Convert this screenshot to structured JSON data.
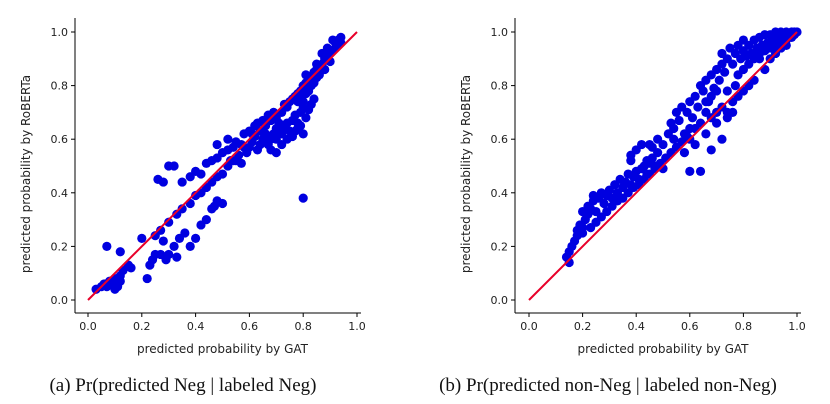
{
  "chart_data": [
    {
      "type": "scatter",
      "caption": "(a) Pr(predicted Neg | labeled Neg)",
      "xlabel": "predicted probability by GAT",
      "ylabel": "predicted probability by RoBERTa",
      "xlim": [
        0.0,
        1.0
      ],
      "ylim": [
        0.0,
        1.0
      ],
      "xticks": [
        "0.0",
        "0.2",
        "0.4",
        "0.6",
        "0.8",
        "1.0"
      ],
      "yticks": [
        "0.0",
        "0.2",
        "0.4",
        "0.6",
        "0.8",
        "1.0"
      ],
      "point_color": "#0000e0",
      "reference_line": {
        "from": [
          0.0,
          0.0
        ],
        "to": [
          1.0,
          1.0
        ],
        "color": "#e8002a"
      },
      "points": [
        [
          0.03,
          0.04
        ],
        [
          0.05,
          0.05
        ],
        [
          0.06,
          0.06
        ],
        [
          0.07,
          0.05
        ],
        [
          0.08,
          0.07
        ],
        [
          0.09,
          0.06
        ],
        [
          0.1,
          0.08
        ],
        [
          0.11,
          0.05
        ],
        [
          0.12,
          0.07
        ],
        [
          0.12,
          0.09
        ],
        [
          0.13,
          0.11
        ],
        [
          0.15,
          0.13
        ],
        [
          0.07,
          0.2
        ],
        [
          0.12,
          0.18
        ],
        [
          0.1,
          0.04
        ],
        [
          0.16,
          0.12
        ],
        [
          0.22,
          0.08
        ],
        [
          0.23,
          0.13
        ],
        [
          0.24,
          0.15
        ],
        [
          0.25,
          0.17
        ],
        [
          0.27,
          0.17
        ],
        [
          0.28,
          0.22
        ],
        [
          0.29,
          0.15
        ],
        [
          0.3,
          0.17
        ],
        [
          0.32,
          0.2
        ],
        [
          0.34,
          0.23
        ],
        [
          0.36,
          0.25
        ],
        [
          0.33,
          0.16
        ],
        [
          0.38,
          0.2
        ],
        [
          0.4,
          0.23
        ],
        [
          0.42,
          0.28
        ],
        [
          0.44,
          0.3
        ],
        [
          0.46,
          0.34
        ],
        [
          0.47,
          0.35
        ],
        [
          0.48,
          0.37
        ],
        [
          0.5,
          0.36
        ],
        [
          0.2,
          0.23
        ],
        [
          0.25,
          0.24
        ],
        [
          0.27,
          0.26
        ],
        [
          0.3,
          0.29
        ],
        [
          0.33,
          0.32
        ],
        [
          0.35,
          0.34
        ],
        [
          0.38,
          0.36
        ],
        [
          0.4,
          0.39
        ],
        [
          0.42,
          0.4
        ],
        [
          0.44,
          0.42
        ],
        [
          0.46,
          0.44
        ],
        [
          0.48,
          0.46
        ],
        [
          0.5,
          0.47
        ],
        [
          0.52,
          0.5
        ],
        [
          0.54,
          0.52
        ],
        [
          0.56,
          0.54
        ],
        [
          0.58,
          0.57
        ],
        [
          0.26,
          0.45
        ],
        [
          0.28,
          0.44
        ],
        [
          0.3,
          0.5
        ],
        [
          0.32,
          0.5
        ],
        [
          0.35,
          0.44
        ],
        [
          0.38,
          0.46
        ],
        [
          0.4,
          0.48
        ],
        [
          0.42,
          0.47
        ],
        [
          0.44,
          0.51
        ],
        [
          0.46,
          0.52
        ],
        [
          0.48,
          0.53
        ],
        [
          0.5,
          0.55
        ],
        [
          0.52,
          0.56
        ],
        [
          0.54,
          0.57
        ],
        [
          0.55,
          0.59
        ],
        [
          0.58,
          0.62
        ],
        [
          0.6,
          0.63
        ],
        [
          0.62,
          0.65
        ],
        [
          0.65,
          0.67
        ],
        [
          0.67,
          0.69
        ],
        [
          0.48,
          0.58
        ],
        [
          0.52,
          0.6
        ],
        [
          0.55,
          0.52
        ],
        [
          0.57,
          0.51
        ],
        [
          0.59,
          0.55
        ],
        [
          0.6,
          0.57
        ],
        [
          0.61,
          0.59
        ],
        [
          0.63,
          0.56
        ],
        [
          0.64,
          0.58
        ],
        [
          0.65,
          0.6
        ],
        [
          0.66,
          0.62
        ],
        [
          0.67,
          0.58
        ],
        [
          0.68,
          0.6
        ],
        [
          0.69,
          0.62
        ],
        [
          0.7,
          0.6
        ],
        [
          0.7,
          0.64
        ],
        [
          0.71,
          0.66
        ],
        [
          0.72,
          0.62
        ],
        [
          0.73,
          0.64
        ],
        [
          0.74,
          0.66
        ],
        [
          0.75,
          0.63
        ],
        [
          0.76,
          0.67
        ],
        [
          0.77,
          0.69
        ],
        [
          0.78,
          0.66
        ],
        [
          0.79,
          0.7
        ],
        [
          0.8,
          0.72
        ],
        [
          0.81,
          0.68
        ],
        [
          0.82,
          0.71
        ],
        [
          0.83,
          0.73
        ],
        [
          0.84,
          0.75
        ],
        [
          0.62,
          0.61
        ],
        [
          0.64,
          0.63
        ],
        [
          0.66,
          0.65
        ],
        [
          0.68,
          0.67
        ],
        [
          0.7,
          0.68
        ],
        [
          0.72,
          0.7
        ],
        [
          0.74,
          0.72
        ],
        [
          0.75,
          0.74
        ],
        [
          0.76,
          0.75
        ],
        [
          0.77,
          0.76
        ],
        [
          0.78,
          0.77
        ],
        [
          0.79,
          0.78
        ],
        [
          0.8,
          0.8
        ],
        [
          0.81,
          0.81
        ],
        [
          0.82,
          0.82
        ],
        [
          0.83,
          0.83
        ],
        [
          0.84,
          0.85
        ],
        [
          0.85,
          0.86
        ],
        [
          0.78,
          0.74
        ],
        [
          0.79,
          0.76
        ],
        [
          0.8,
          0.74
        ],
        [
          0.81,
          0.77
        ],
        [
          0.82,
          0.78
        ],
        [
          0.83,
          0.8
        ],
        [
          0.84,
          0.81
        ],
        [
          0.85,
          0.83
        ],
        [
          0.86,
          0.84
        ],
        [
          0.86,
          0.87
        ],
        [
          0.87,
          0.88
        ],
        [
          0.88,
          0.86
        ],
        [
          0.88,
          0.9
        ],
        [
          0.89,
          0.91
        ],
        [
          0.9,
          0.89
        ],
        [
          0.9,
          0.92
        ],
        [
          0.91,
          0.93
        ],
        [
          0.92,
          0.94
        ],
        [
          0.92,
          0.96
        ],
        [
          0.93,
          0.97
        ],
        [
          0.93,
          0.95
        ],
        [
          0.94,
          0.98
        ],
        [
          0.94,
          0.96
        ],
        [
          0.68,
          0.56
        ],
        [
          0.7,
          0.55
        ],
        [
          0.72,
          0.58
        ],
        [
          0.74,
          0.6
        ],
        [
          0.76,
          0.61
        ],
        [
          0.77,
          0.63
        ],
        [
          0.78,
          0.64
        ],
        [
          0.79,
          0.65
        ],
        [
          0.8,
          0.62
        ],
        [
          0.8,
          0.38
        ],
        [
          0.53,
          0.52
        ],
        [
          0.57,
          0.58
        ],
        [
          0.61,
          0.62
        ],
        [
          0.63,
          0.66
        ],
        [
          0.69,
          0.7
        ],
        [
          0.73,
          0.73
        ],
        [
          0.81,
          0.84
        ],
        [
          0.85,
          0.88
        ],
        [
          0.87,
          0.92
        ],
        [
          0.89,
          0.94
        ],
        [
          0.91,
          0.97
        ]
      ]
    },
    {
      "type": "scatter",
      "caption": "(b) Pr(predicted non-Neg | labeled non-Neg)",
      "xlabel": "predicted probability by GAT",
      "ylabel": "predicted probability by RoBERTa",
      "xlim": [
        0.0,
        1.0
      ],
      "ylim": [
        0.0,
        1.0
      ],
      "xticks": [
        "0.0",
        "0.2",
        "0.4",
        "0.6",
        "0.8",
        "1.0"
      ],
      "yticks": [
        "0.0",
        "0.2",
        "0.4",
        "0.6",
        "0.8",
        "1.0"
      ],
      "point_color": "#0000e0",
      "reference_line": {
        "from": [
          0.0,
          0.0
        ],
        "to": [
          1.0,
          1.0
        ],
        "color": "#e8002a"
      },
      "points": [
        [
          0.14,
          0.16
        ],
        [
          0.15,
          0.14
        ],
        [
          0.15,
          0.18
        ],
        [
          0.16,
          0.2
        ],
        [
          0.17,
          0.22
        ],
        [
          0.18,
          0.24
        ],
        [
          0.18,
          0.26
        ],
        [
          0.19,
          0.28
        ],
        [
          0.2,
          0.27
        ],
        [
          0.2,
          0.33
        ],
        [
          0.21,
          0.3
        ],
        [
          0.22,
          0.32
        ],
        [
          0.22,
          0.35
        ],
        [
          0.23,
          0.34
        ],
        [
          0.24,
          0.37
        ],
        [
          0.24,
          0.39
        ],
        [
          0.25,
          0.33
        ],
        [
          0.26,
          0.38
        ],
        [
          0.27,
          0.4
        ],
        [
          0.28,
          0.36
        ],
        [
          0.29,
          0.39
        ],
        [
          0.3,
          0.41
        ],
        [
          0.31,
          0.38
        ],
        [
          0.32,
          0.43
        ],
        [
          0.33,
          0.4
        ],
        [
          0.34,
          0.45
        ],
        [
          0.35,
          0.42
        ],
        [
          0.36,
          0.44
        ],
        [
          0.37,
          0.47
        ],
        [
          0.38,
          0.43
        ],
        [
          0.39,
          0.46
        ],
        [
          0.4,
          0.48
        ],
        [
          0.41,
          0.45
        ],
        [
          0.42,
          0.49
        ],
        [
          0.43,
          0.5
        ],
        [
          0.44,
          0.47
        ],
        [
          0.45,
          0.51
        ],
        [
          0.46,
          0.53
        ],
        [
          0.47,
          0.5
        ],
        [
          0.48,
          0.55
        ],
        [
          0.2,
          0.25
        ],
        [
          0.23,
          0.27
        ],
        [
          0.25,
          0.29
        ],
        [
          0.27,
          0.31
        ],
        [
          0.29,
          0.33
        ],
        [
          0.31,
          0.35
        ],
        [
          0.33,
          0.37
        ],
        [
          0.35,
          0.38
        ],
        [
          0.37,
          0.4
        ],
        [
          0.39,
          0.42
        ],
        [
          0.41,
          0.43
        ],
        [
          0.43,
          0.45
        ],
        [
          0.45,
          0.47
        ],
        [
          0.47,
          0.49
        ],
        [
          0.49,
          0.51
        ],
        [
          0.51,
          0.53
        ],
        [
          0.53,
          0.55
        ],
        [
          0.55,
          0.57
        ],
        [
          0.57,
          0.59
        ],
        [
          0.59,
          0.61
        ],
        [
          0.38,
          0.54
        ],
        [
          0.4,
          0.56
        ],
        [
          0.42,
          0.58
        ],
        [
          0.44,
          0.52
        ],
        [
          0.46,
          0.57
        ],
        [
          0.48,
          0.6
        ],
        [
          0.5,
          0.58
        ],
        [
          0.52,
          0.62
        ],
        [
          0.53,
          0.66
        ],
        [
          0.54,
          0.64
        ],
        [
          0.55,
          0.7
        ],
        [
          0.56,
          0.67
        ],
        [
          0.57,
          0.72
        ],
        [
          0.58,
          0.62
        ],
        [
          0.59,
          0.7
        ],
        [
          0.6,
          0.74
        ],
        [
          0.61,
          0.68
        ],
        [
          0.62,
          0.76
        ],
        [
          0.63,
          0.72
        ],
        [
          0.64,
          0.8
        ],
        [
          0.65,
          0.78
        ],
        [
          0.66,
          0.82
        ],
        [
          0.67,
          0.74
        ],
        [
          0.68,
          0.84
        ],
        [
          0.69,
          0.79
        ],
        [
          0.7,
          0.86
        ],
        [
          0.71,
          0.82
        ],
        [
          0.72,
          0.88
        ],
        [
          0.73,
          0.85
        ],
        [
          0.74,
          0.78
        ],
        [
          0.38,
          0.52
        ],
        [
          0.45,
          0.58
        ],
        [
          0.5,
          0.49
        ],
        [
          0.54,
          0.6
        ],
        [
          0.58,
          0.55
        ],
        [
          0.6,
          0.6
        ],
        [
          0.62,
          0.64
        ],
        [
          0.64,
          0.66
        ],
        [
          0.66,
          0.62
        ],
        [
          0.68,
          0.68
        ],
        [
          0.7,
          0.7
        ],
        [
          0.72,
          0.72
        ],
        [
          0.74,
          0.7
        ],
        [
          0.76,
          0.74
        ],
        [
          0.78,
          0.76
        ],
        [
          0.8,
          0.78
        ],
        [
          0.82,
          0.8
        ],
        [
          0.84,
          0.82
        ],
        [
          0.72,
          0.92
        ],
        [
          0.74,
          0.9
        ],
        [
          0.75,
          0.94
        ],
        [
          0.76,
          0.88
        ],
        [
          0.77,
          0.92
        ],
        [
          0.78,
          0.95
        ],
        [
          0.79,
          0.9
        ],
        [
          0.8,
          0.93
        ],
        [
          0.8,
          0.97
        ],
        [
          0.81,
          0.91
        ],
        [
          0.82,
          0.95
        ],
        [
          0.83,
          0.92
        ],
        [
          0.84,
          0.97
        ],
        [
          0.85,
          0.94
        ],
        [
          0.86,
          0.98
        ],
        [
          0.86,
          0.9
        ],
        [
          0.87,
          0.95
        ],
        [
          0.88,
          0.99
        ],
        [
          0.88,
          0.93
        ],
        [
          0.89,
          0.96
        ],
        [
          0.9,
          0.99
        ],
        [
          0.9,
          0.94
        ],
        [
          0.91,
          0.97
        ],
        [
          0.92,
          1.0
        ],
        [
          0.92,
          0.95
        ],
        [
          0.93,
          0.98
        ],
        [
          0.94,
          1.0
        ],
        [
          0.94,
          0.96
        ],
        [
          0.95,
          0.99
        ],
        [
          0.96,
          1.0
        ],
        [
          0.96,
          0.97
        ],
        [
          0.97,
          0.99
        ],
        [
          0.98,
          1.0
        ],
        [
          0.98,
          0.98
        ],
        [
          0.99,
          1.0
        ],
        [
          0.99,
          0.99
        ],
        [
          1.0,
          1.0
        ],
        [
          0.6,
          0.48
        ],
        [
          0.62,
          0.58
        ],
        [
          0.64,
          0.48
        ],
        [
          0.66,
          0.7
        ],
        [
          0.68,
          0.56
        ],
        [
          0.7,
          0.66
        ],
        [
          0.72,
          0.6
        ],
        [
          0.74,
          0.68
        ],
        [
          0.76,
          0.7
        ],
        [
          0.77,
          0.8
        ],
        [
          0.78,
          0.84
        ],
        [
          0.8,
          0.86
        ],
        [
          0.82,
          0.88
        ],
        [
          0.84,
          0.9
        ],
        [
          0.86,
          0.92
        ],
        [
          0.88,
          0.86
        ],
        [
          0.9,
          0.9
        ],
        [
          0.92,
          0.92
        ],
        [
          0.94,
          0.94
        ],
        [
          0.96,
          0.95
        ],
        [
          0.68,
          0.76
        ],
        [
          0.7,
          0.78
        ],
        [
          0.66,
          0.74
        ],
        [
          0.6,
          0.64
        ]
      ]
    }
  ]
}
